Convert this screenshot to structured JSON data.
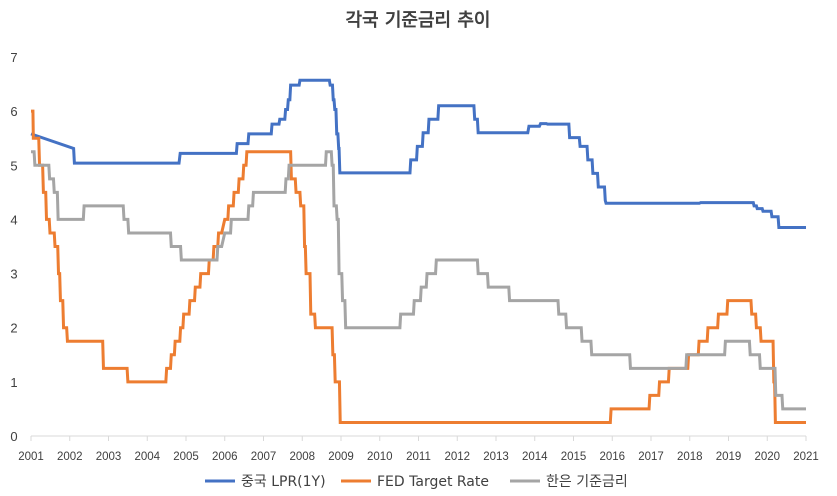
{
  "chart_data": {
    "type": "line",
    "title": "각국 기준금리 추이",
    "xlabel": "",
    "ylabel": "",
    "xlim": [
      2001,
      2021
    ],
    "ylim": [
      0,
      7
    ],
    "y_ticks": [
      "0",
      "1",
      "2",
      "3",
      "4",
      "5",
      "6",
      "7"
    ],
    "x_ticks": [
      "2001",
      "2002",
      "2003",
      "2004",
      "2005",
      "2006",
      "2007",
      "2008",
      "2009",
      "2010",
      "2011",
      "2012",
      "2013",
      "2014",
      "2015",
      "2016",
      "2017",
      "2018",
      "2019",
      "2020",
      "2021"
    ],
    "grid": false,
    "legend_position": "bottom",
    "step": true,
    "series": [
      {
        "name": "중국 LPR(1Y)",
        "color": "#4472C4",
        "points": [
          [
            2001.0,
            5.58
          ],
          [
            2002.1,
            5.31
          ],
          [
            2002.12,
            5.04
          ],
          [
            2004.82,
            5.04
          ],
          [
            2004.85,
            5.22
          ],
          [
            2006.3,
            5.22
          ],
          [
            2006.32,
            5.4
          ],
          [
            2006.6,
            5.4
          ],
          [
            2006.62,
            5.58
          ],
          [
            2007.2,
            5.58
          ],
          [
            2007.22,
            5.76
          ],
          [
            2007.4,
            5.76
          ],
          [
            2007.42,
            5.85
          ],
          [
            2007.55,
            5.85
          ],
          [
            2007.57,
            6.03
          ],
          [
            2007.62,
            6.03
          ],
          [
            2007.64,
            6.21
          ],
          [
            2007.68,
            6.21
          ],
          [
            2007.7,
            6.48
          ],
          [
            2007.92,
            6.48
          ],
          [
            2007.94,
            6.57
          ],
          [
            2008.7,
            6.57
          ],
          [
            2008.72,
            6.48
          ],
          [
            2008.78,
            6.48
          ],
          [
            2008.8,
            6.21
          ],
          [
            2008.82,
            6.21
          ],
          [
            2008.84,
            6.03
          ],
          [
            2008.87,
            6.03
          ],
          [
            2008.89,
            5.58
          ],
          [
            2008.92,
            5.58
          ],
          [
            2008.94,
            5.31
          ],
          [
            2008.95,
            5.31
          ],
          [
            2008.97,
            4.86
          ],
          [
            2010.78,
            4.86
          ],
          [
            2010.8,
            5.1
          ],
          [
            2010.95,
            5.1
          ],
          [
            2010.97,
            5.35
          ],
          [
            2011.1,
            5.35
          ],
          [
            2011.12,
            5.6
          ],
          [
            2011.25,
            5.6
          ],
          [
            2011.27,
            5.85
          ],
          [
            2011.5,
            5.85
          ],
          [
            2011.52,
            6.1
          ],
          [
            2012.43,
            6.1
          ],
          [
            2012.45,
            5.85
          ],
          [
            2012.52,
            5.85
          ],
          [
            2012.54,
            5.6
          ],
          [
            2013.82,
            5.6
          ],
          [
            2013.85,
            5.72
          ],
          [
            2014.12,
            5.72
          ],
          [
            2014.15,
            5.77
          ],
          [
            2014.3,
            5.77
          ],
          [
            2014.33,
            5.76
          ],
          [
            2014.88,
            5.76
          ],
          [
            2014.9,
            5.51
          ],
          [
            2015.15,
            5.51
          ],
          [
            2015.17,
            5.35
          ],
          [
            2015.35,
            5.35
          ],
          [
            2015.37,
            5.1
          ],
          [
            2015.48,
            5.1
          ],
          [
            2015.5,
            4.85
          ],
          [
            2015.62,
            4.85
          ],
          [
            2015.64,
            4.6
          ],
          [
            2015.8,
            4.6
          ],
          [
            2015.82,
            4.35
          ],
          [
            2015.84,
            4.3
          ],
          [
            2018.25,
            4.3
          ],
          [
            2018.28,
            4.31
          ],
          [
            2019.64,
            4.31
          ],
          [
            2019.66,
            4.25
          ],
          [
            2019.72,
            4.25
          ],
          [
            2019.74,
            4.2
          ],
          [
            2019.87,
            4.2
          ],
          [
            2019.89,
            4.15
          ],
          [
            2020.1,
            4.15
          ],
          [
            2020.12,
            4.05
          ],
          [
            2020.28,
            4.05
          ],
          [
            2020.3,
            3.85
          ],
          [
            2021.0,
            3.85
          ]
        ]
      },
      {
        "name": "FED Target Rate",
        "color": "#ED7D31",
        "points": [
          [
            2001.0,
            6.0
          ],
          [
            2001.05,
            6.0
          ],
          [
            2001.06,
            5.5
          ],
          [
            2001.2,
            5.5
          ],
          [
            2001.22,
            5.0
          ],
          [
            2001.3,
            5.0
          ],
          [
            2001.32,
            4.5
          ],
          [
            2001.38,
            4.5
          ],
          [
            2001.4,
            4.0
          ],
          [
            2001.47,
            4.0
          ],
          [
            2001.49,
            3.75
          ],
          [
            2001.6,
            3.75
          ],
          [
            2001.62,
            3.5
          ],
          [
            2001.69,
            3.5
          ],
          [
            2001.71,
            3.0
          ],
          [
            2001.74,
            3.0
          ],
          [
            2001.76,
            2.5
          ],
          [
            2001.82,
            2.5
          ],
          [
            2001.84,
            2.0
          ],
          [
            2001.92,
            2.0
          ],
          [
            2001.94,
            1.75
          ],
          [
            2002.85,
            1.75
          ],
          [
            2002.87,
            1.25
          ],
          [
            2003.48,
            1.25
          ],
          [
            2003.5,
            1.0
          ],
          [
            2004.48,
            1.0
          ],
          [
            2004.5,
            1.25
          ],
          [
            2004.6,
            1.25
          ],
          [
            2004.62,
            1.5
          ],
          [
            2004.7,
            1.5
          ],
          [
            2004.72,
            1.75
          ],
          [
            2004.84,
            1.75
          ],
          [
            2004.86,
            2.0
          ],
          [
            2004.92,
            2.0
          ],
          [
            2004.94,
            2.25
          ],
          [
            2005.08,
            2.25
          ],
          [
            2005.1,
            2.5
          ],
          [
            2005.22,
            2.5
          ],
          [
            2005.24,
            2.75
          ],
          [
            2005.36,
            2.75
          ],
          [
            2005.38,
            3.0
          ],
          [
            2005.58,
            3.0
          ],
          [
            2005.6,
            3.25
          ],
          [
            2005.7,
            3.25
          ],
          [
            2005.72,
            3.5
          ],
          [
            2005.82,
            3.5
          ],
          [
            2005.84,
            3.75
          ],
          [
            2005.92,
            3.75
          ],
          [
            2006.0,
            4.0
          ],
          [
            2006.08,
            4.0
          ],
          [
            2006.1,
            4.25
          ],
          [
            2006.22,
            4.25
          ],
          [
            2006.24,
            4.5
          ],
          [
            2006.35,
            4.5
          ],
          [
            2006.37,
            4.75
          ],
          [
            2006.47,
            4.75
          ],
          [
            2006.49,
            5.0
          ],
          [
            2006.55,
            5.0
          ],
          [
            2006.57,
            5.25
          ],
          [
            2007.7,
            5.25
          ],
          [
            2007.72,
            4.75
          ],
          [
            2007.82,
            4.75
          ],
          [
            2007.84,
            4.5
          ],
          [
            2007.94,
            4.5
          ],
          [
            2007.96,
            4.25
          ],
          [
            2008.04,
            4.25
          ],
          [
            2008.06,
            3.5
          ],
          [
            2008.08,
            3.5
          ],
          [
            2008.1,
            3.0
          ],
          [
            2008.2,
            3.0
          ],
          [
            2008.22,
            2.25
          ],
          [
            2008.32,
            2.25
          ],
          [
            2008.34,
            2.0
          ],
          [
            2008.77,
            2.0
          ],
          [
            2008.79,
            1.5
          ],
          [
            2008.83,
            1.5
          ],
          [
            2008.85,
            1.0
          ],
          [
            2008.96,
            1.0
          ],
          [
            2008.98,
            0.25
          ],
          [
            2015.95,
            0.25
          ],
          [
            2015.97,
            0.5
          ],
          [
            2016.95,
            0.5
          ],
          [
            2016.97,
            0.75
          ],
          [
            2017.2,
            0.75
          ],
          [
            2017.22,
            1.0
          ],
          [
            2017.45,
            1.0
          ],
          [
            2017.47,
            1.25
          ],
          [
            2017.95,
            1.25
          ],
          [
            2017.97,
            1.5
          ],
          [
            2018.22,
            1.5
          ],
          [
            2018.24,
            1.75
          ],
          [
            2018.45,
            1.75
          ],
          [
            2018.47,
            2.0
          ],
          [
            2018.72,
            2.0
          ],
          [
            2018.74,
            2.25
          ],
          [
            2018.96,
            2.25
          ],
          [
            2018.98,
            2.5
          ],
          [
            2019.58,
            2.5
          ],
          [
            2019.6,
            2.25
          ],
          [
            2019.7,
            2.25
          ],
          [
            2019.72,
            2.0
          ],
          [
            2019.82,
            2.0
          ],
          [
            2019.84,
            1.75
          ],
          [
            2020.15,
            1.75
          ],
          [
            2020.17,
            1.0
          ],
          [
            2020.19,
            1.0
          ],
          [
            2020.21,
            0.25
          ],
          [
            2021.0,
            0.25
          ]
        ]
      },
      {
        "name": "한은 기준금리",
        "color": "#A5A5A5",
        "points": [
          [
            2001.0,
            5.25
          ],
          [
            2001.08,
            5.25
          ],
          [
            2001.1,
            5.0
          ],
          [
            2001.46,
            5.0
          ],
          [
            2001.48,
            4.75
          ],
          [
            2001.58,
            4.75
          ],
          [
            2001.6,
            4.5
          ],
          [
            2001.68,
            4.5
          ],
          [
            2001.7,
            4.0
          ],
          [
            2002.35,
            4.0
          ],
          [
            2002.37,
            4.25
          ],
          [
            2003.38,
            4.25
          ],
          [
            2003.4,
            4.0
          ],
          [
            2003.5,
            4.0
          ],
          [
            2003.52,
            3.75
          ],
          [
            2004.6,
            3.75
          ],
          [
            2004.62,
            3.5
          ],
          [
            2004.86,
            3.5
          ],
          [
            2004.88,
            3.25
          ],
          [
            2005.8,
            3.25
          ],
          [
            2005.82,
            3.5
          ],
          [
            2005.92,
            3.5
          ],
          [
            2006.0,
            3.75
          ],
          [
            2006.15,
            3.75
          ],
          [
            2006.17,
            4.0
          ],
          [
            2006.6,
            4.0
          ],
          [
            2006.62,
            4.25
          ],
          [
            2006.72,
            4.25
          ],
          [
            2006.74,
            4.5
          ],
          [
            2007.56,
            4.5
          ],
          [
            2007.58,
            4.75
          ],
          [
            2007.64,
            4.75
          ],
          [
            2007.66,
            5.0
          ],
          [
            2008.6,
            5.0
          ],
          [
            2008.62,
            5.25
          ],
          [
            2008.75,
            5.25
          ],
          [
            2008.77,
            5.0
          ],
          [
            2008.8,
            5.0
          ],
          [
            2008.82,
            4.25
          ],
          [
            2008.88,
            4.25
          ],
          [
            2008.9,
            4.0
          ],
          [
            2008.93,
            4.0
          ],
          [
            2008.95,
            3.0
          ],
          [
            2009.02,
            3.0
          ],
          [
            2009.04,
            2.5
          ],
          [
            2009.1,
            2.5
          ],
          [
            2009.12,
            2.0
          ],
          [
            2010.52,
            2.0
          ],
          [
            2010.54,
            2.25
          ],
          [
            2010.87,
            2.25
          ],
          [
            2010.89,
            2.5
          ],
          [
            2011.05,
            2.5
          ],
          [
            2011.07,
            2.75
          ],
          [
            2011.2,
            2.75
          ],
          [
            2011.22,
            3.0
          ],
          [
            2011.44,
            3.0
          ],
          [
            2011.46,
            3.25
          ],
          [
            2012.52,
            3.25
          ],
          [
            2012.54,
            3.0
          ],
          [
            2012.78,
            3.0
          ],
          [
            2012.8,
            2.75
          ],
          [
            2013.33,
            2.75
          ],
          [
            2013.35,
            2.5
          ],
          [
            2014.6,
            2.5
          ],
          [
            2014.62,
            2.25
          ],
          [
            2014.8,
            2.25
          ],
          [
            2014.82,
            2.0
          ],
          [
            2015.2,
            2.0
          ],
          [
            2015.22,
            1.75
          ],
          [
            2015.45,
            1.75
          ],
          [
            2015.47,
            1.5
          ],
          [
            2016.45,
            1.5
          ],
          [
            2016.47,
            1.25
          ],
          [
            2017.9,
            1.25
          ],
          [
            2017.92,
            1.5
          ],
          [
            2018.9,
            1.5
          ],
          [
            2018.92,
            1.75
          ],
          [
            2019.54,
            1.75
          ],
          [
            2019.56,
            1.5
          ],
          [
            2019.8,
            1.5
          ],
          [
            2019.82,
            1.25
          ],
          [
            2020.2,
            1.25
          ],
          [
            2020.22,
            0.75
          ],
          [
            2020.38,
            0.75
          ],
          [
            2020.4,
            0.5
          ],
          [
            2021.0,
            0.5
          ]
        ]
      }
    ]
  }
}
